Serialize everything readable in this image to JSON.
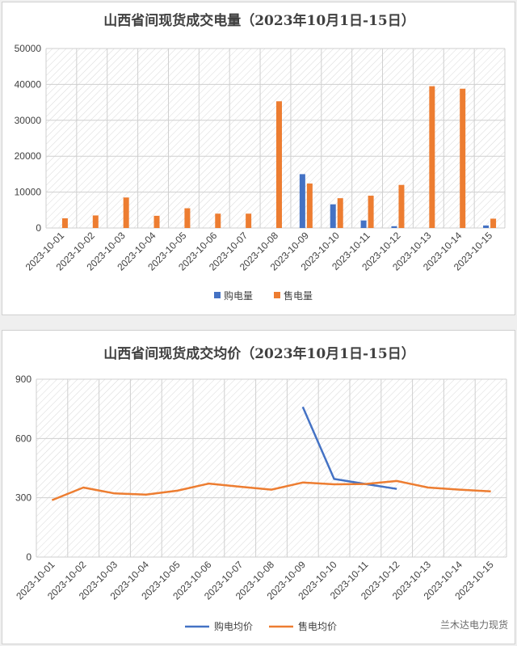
{
  "chart_data": [
    {
      "type": "bar",
      "title": "山西省间现货成交电量（2023年10月1日-15日）",
      "categories": [
        "2023-10-01",
        "2023-10-02",
        "2023-10-03",
        "2023-10-04",
        "2023-10-05",
        "2023-10-06",
        "2023-10-07",
        "2023-10-08",
        "2023-10-09",
        "2023-10-10",
        "2023-10-11",
        "2023-10-12",
        "2023-10-13",
        "2023-10-14",
        "2023-10-15"
      ],
      "series": [
        {
          "name": "购电量",
          "color": "#4472c4",
          "values": [
            0,
            0,
            0,
            0,
            0,
            0,
            0,
            0,
            15000,
            6600,
            2100,
            500,
            0,
            0,
            700
          ]
        },
        {
          "name": "售电量",
          "color": "#ed7d31",
          "values": [
            2700,
            3500,
            8500,
            3400,
            5500,
            4000,
            4000,
            35300,
            12400,
            8300,
            9000,
            12000,
            39500,
            38800,
            2600
          ]
        }
      ],
      "ylim": [
        0,
        50000
      ],
      "yticks": [
        "0",
        "10000",
        "20000",
        "30000",
        "40000",
        "50000"
      ],
      "grid": true,
      "legend_position": "bottom"
    },
    {
      "type": "line",
      "title": "山西省间现货成交均价（2023年10月1日-15日）",
      "categories": [
        "2023-10-01",
        "2023-10-02",
        "2023-10-03",
        "2023-10-04",
        "2023-10-05",
        "2023-10-06",
        "2023-10-07",
        "2023-10-08",
        "2023-10-09",
        "2023-10-10",
        "2023-10-11",
        "2023-10-12",
        "2023-10-13",
        "2023-10-14",
        "2023-10-15"
      ],
      "series": [
        {
          "name": "购电均价",
          "color": "#4472c4",
          "values": [
            null,
            null,
            null,
            null,
            null,
            null,
            null,
            null,
            760,
            395,
            370,
            345,
            null,
            null,
            null
          ]
        },
        {
          "name": "售电均价",
          "color": "#ed7d31",
          "values": [
            288,
            352,
            322,
            316,
            336,
            372,
            356,
            341,
            377,
            368,
            370,
            385,
            352,
            341,
            332
          ]
        }
      ],
      "ylim": [
        0,
        900
      ],
      "yticks": [
        "0",
        "300",
        "600",
        "900"
      ],
      "grid": true,
      "legend_position": "bottom"
    }
  ],
  "watermark": "兰木达电力现货"
}
